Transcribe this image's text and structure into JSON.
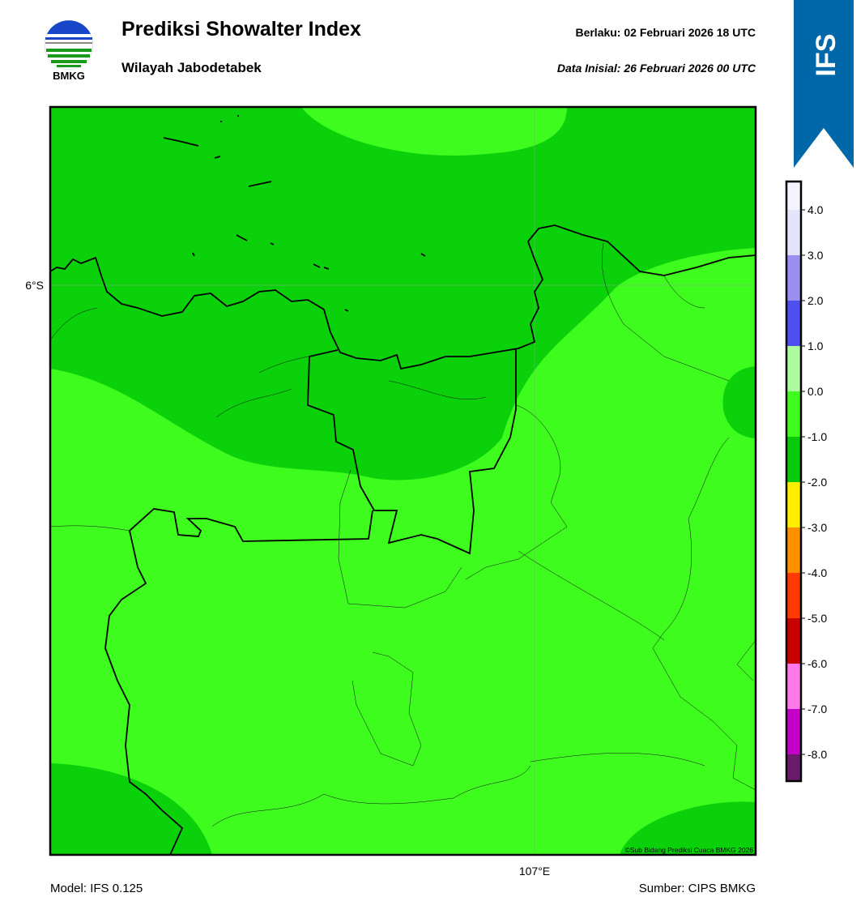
{
  "header": {
    "title": "Prediksi Showalter Index",
    "subtitle": "Wilayah Jabodetabek",
    "valid": "Berlaku:  02 Februari 2026 18 UTC",
    "init": "Data Inisial:  26 Februari 2026 00 UTC",
    "logo_text": "BMKG",
    "model_badge": "IFS"
  },
  "map": {
    "lat_label": "6°S",
    "lon_label": "107°E",
    "credit": "©Sub Bidang Prediksi Cuaca BMKG 2026"
  },
  "colorbar": {
    "labels": [
      "4.0",
      "3.0",
      "2.0",
      "1.0",
      "0.0",
      "-1.0",
      "-2.0",
      "-3.0",
      "-4.0",
      "-5.0",
      "-6.0",
      "-7.0",
      "-8.0"
    ],
    "colors": [
      "#f4f4ff",
      "#e4e4fa",
      "#9c8ff3",
      "#4f4ff0",
      "#adfca0",
      "#3ffc1f",
      "#0ac80a",
      "#ffee00",
      "#ff9000",
      "#ff3a00",
      "#c80000",
      "#ff7ae8",
      "#c400c8",
      "#6a1a6a"
    ]
  },
  "footer": {
    "model": "Model: IFS 0.125",
    "source": "Sumber: CIPS BMKG"
  }
}
